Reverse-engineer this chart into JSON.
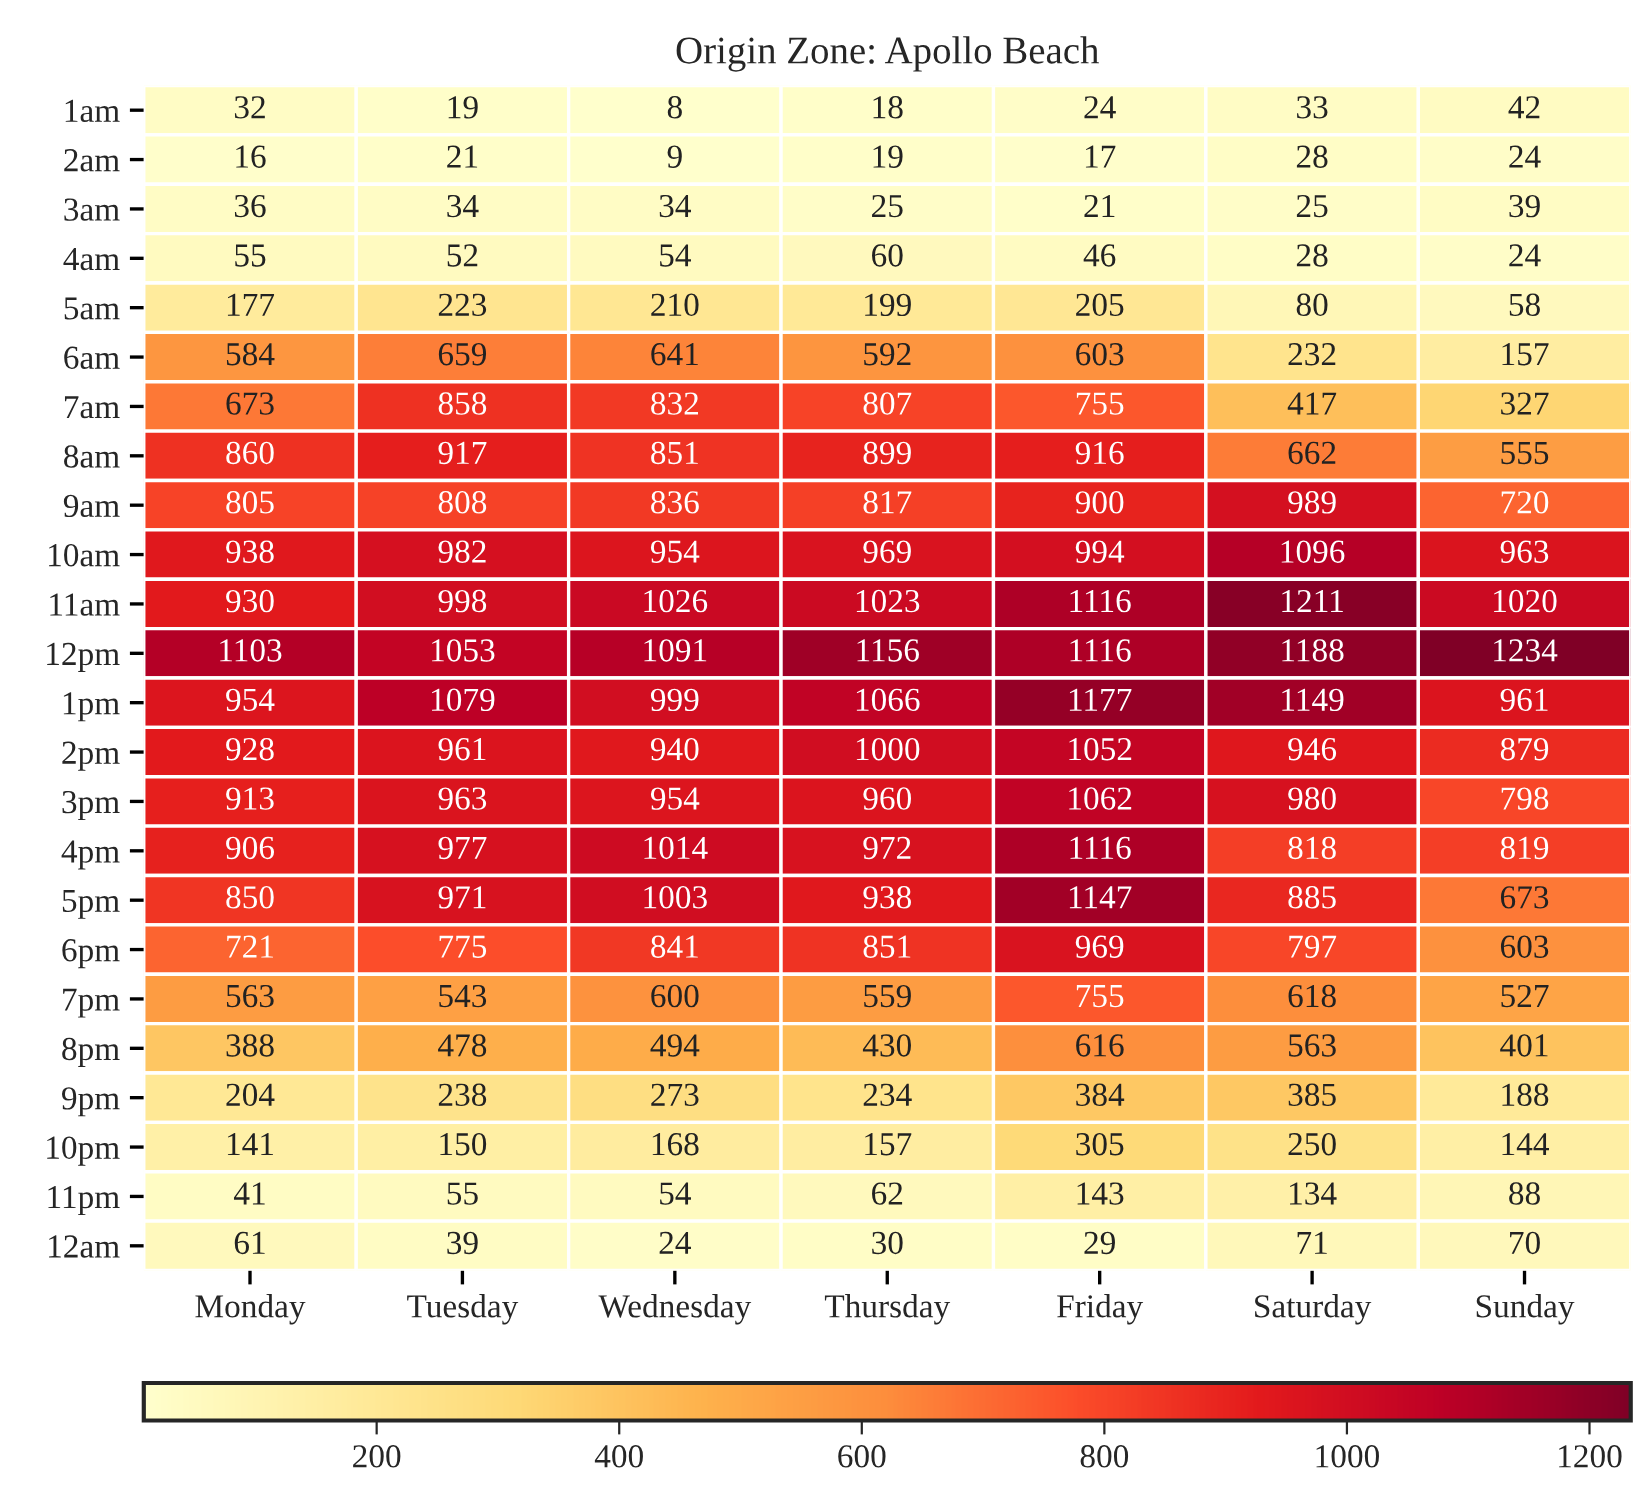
{
  "chart_data": {
    "type": "heatmap",
    "title": "Origin Zone: Apollo Beach",
    "categories": [
      "Monday",
      "Tuesday",
      "Wednesday",
      "Thursday",
      "Friday",
      "Saturday",
      "Sunday"
    ],
    "y_categories": [
      "1am",
      "2am",
      "3am",
      "4am",
      "5am",
      "6am",
      "7am",
      "8am",
      "9am",
      "10am",
      "11am",
      "12pm",
      "1pm",
      "2pm",
      "3pm",
      "4pm",
      "5pm",
      "6pm",
      "7pm",
      "8pm",
      "9pm",
      "10pm",
      "11pm",
      "12am"
    ],
    "cells": [
      [
        32,
        19,
        8,
        18,
        24,
        33,
        42
      ],
      [
        16,
        21,
        9,
        19,
        17,
        28,
        24
      ],
      [
        36,
        34,
        34,
        25,
        21,
        25,
        39
      ],
      [
        55,
        52,
        54,
        60,
        46,
        28,
        24
      ],
      [
        177,
        223,
        210,
        199,
        205,
        80,
        58
      ],
      [
        584,
        659,
        641,
        592,
        603,
        232,
        157
      ],
      [
        673,
        858,
        832,
        807,
        755,
        417,
        327
      ],
      [
        860,
        917,
        851,
        899,
        916,
        662,
        555
      ],
      [
        805,
        808,
        836,
        817,
        900,
        989,
        720
      ],
      [
        938,
        982,
        954,
        969,
        994,
        1096,
        963
      ],
      [
        930,
        998,
        1026,
        1023,
        1116,
        1211,
        1020
      ],
      [
        1103,
        1053,
        1091,
        1156,
        1116,
        1188,
        1234
      ],
      [
        954,
        1079,
        999,
        1066,
        1177,
        1149,
        961
      ],
      [
        928,
        961,
        940,
        1000,
        1052,
        946,
        879
      ],
      [
        913,
        963,
        954,
        960,
        1062,
        980,
        798
      ],
      [
        906,
        977,
        1014,
        972,
        1116,
        818,
        819
      ],
      [
        850,
        971,
        1003,
        938,
        1147,
        885,
        673
      ],
      [
        721,
        775,
        841,
        851,
        969,
        797,
        603
      ],
      [
        563,
        543,
        600,
        559,
        755,
        618,
        527
      ],
      [
        388,
        478,
        494,
        430,
        616,
        563,
        401
      ],
      [
        204,
        238,
        273,
        234,
        384,
        385,
        188
      ],
      [
        141,
        150,
        168,
        157,
        305,
        250,
        144
      ],
      [
        41,
        55,
        54,
        62,
        143,
        134,
        88
      ],
      [
        61,
        39,
        24,
        30,
        29,
        71,
        70
      ]
    ],
    "data_labels": true,
    "clim": [
      8,
      1234
    ],
    "cticks": [
      200,
      400,
      600,
      800,
      1000,
      1200
    ]
  }
}
